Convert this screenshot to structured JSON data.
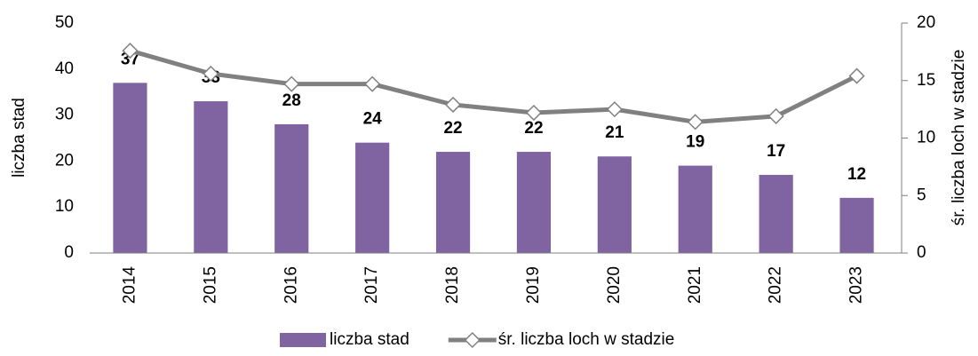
{
  "chart_data": {
    "type": "bar",
    "categories": [
      "2014",
      "2015",
      "2016",
      "2017",
      "2018",
      "2019",
      "2020",
      "2021",
      "2022",
      "2023"
    ],
    "series": [
      {
        "name": "liczba stad",
        "type": "bar",
        "color": "#8064a2",
        "values": [
          37,
          33,
          28,
          24,
          22,
          22,
          21,
          19,
          17,
          12
        ]
      },
      {
        "name": "śr. liczba loch w stadzie",
        "type": "line",
        "axis": "y2",
        "color": "#808080",
        "values": [
          17.6,
          15.6,
          14.7,
          14.7,
          12.9,
          12.2,
          12.5,
          11.4,
          11.9,
          15.4
        ]
      }
    ],
    "y_label": "liczba stad",
    "y2_label": "śr. liczba loch w stadzie",
    "ylim": [
      0,
      50
    ],
    "yticks": [
      0,
      10,
      20,
      30,
      40,
      50
    ],
    "y2lim": [
      0,
      20
    ],
    "y2ticks": [
      0,
      5,
      10,
      15,
      20
    ],
    "legend": "bottom"
  }
}
